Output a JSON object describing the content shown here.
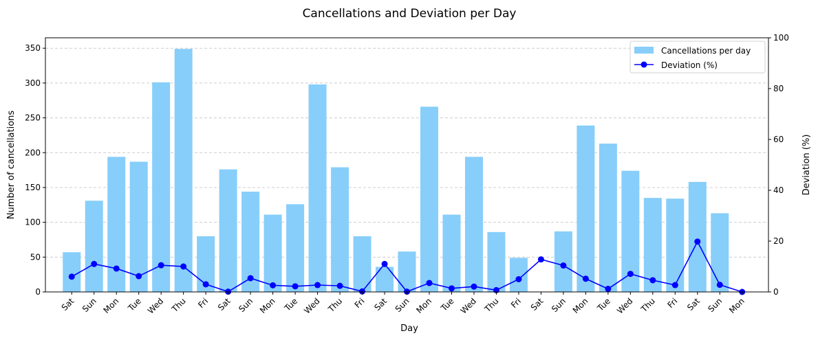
{
  "chart_data": {
    "type": "bar+line",
    "title": "Cancellations and Deviation per Day",
    "xlabel": "Day",
    "ylabel_left": "Number of cancellations",
    "ylabel_right": "Deviation (%)",
    "ylim_left": [
      0,
      365
    ],
    "ylim_right": [
      0,
      100
    ],
    "yticks_left": [
      0,
      50,
      100,
      150,
      200,
      250,
      300,
      350
    ],
    "yticks_right": [
      0,
      20,
      40,
      60,
      80,
      100
    ],
    "grid": "horizontal dashed",
    "legend_position": "top-right",
    "categories": [
      "Sat",
      "Sun",
      "Mon",
      "Tue",
      "Wed",
      "Thu",
      "Fri",
      "Sat",
      "Sun",
      "Mon",
      "Tue",
      "Wed",
      "Thu",
      "Fri",
      "Sat",
      "Sun",
      "Mon",
      "Tue",
      "Wed",
      "Thu",
      "Fri",
      "Sat",
      "Sun",
      "Mon",
      "Tue",
      "Wed",
      "Thu",
      "Fri",
      "Sat",
      "Sun",
      "Mon"
    ],
    "series": [
      {
        "name": "Cancellations per day",
        "type": "bar",
        "axis": "left",
        "color": "#87CEFA",
        "values": [
          57,
          131,
          194,
          187,
          301,
          349,
          80,
          176,
          144,
          111,
          126,
          298,
          179,
          80,
          36,
          58,
          266,
          111,
          194,
          86,
          49,
          null,
          87,
          239,
          213,
          174,
          135,
          134,
          158,
          113,
          null
        ]
      },
      {
        "name": "Deviation (%)",
        "type": "line",
        "axis": "right",
        "color": "#0000FF",
        "values": [
          6.0,
          11.0,
          9.2,
          6.2,
          10.5,
          10.0,
          3.0,
          0.1,
          5.4,
          2.6,
          2.2,
          2.7,
          2.4,
          0.2,
          11.0,
          0.1,
          3.5,
          1.4,
          2.1,
          0.7,
          5.0,
          12.8,
          10.4,
          5.2,
          1.2,
          7.1,
          4.6,
          2.7,
          19.8,
          2.8,
          0.0
        ]
      }
    ]
  }
}
